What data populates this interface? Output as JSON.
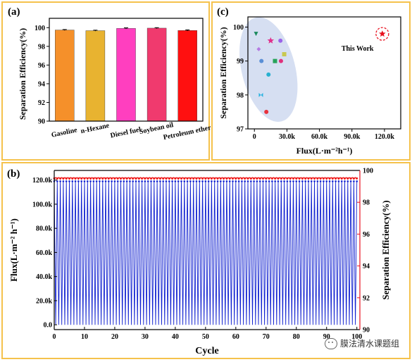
{
  "chart_data": [
    {
      "id": "a",
      "panel_label": "(a)",
      "type": "bar",
      "categories": [
        "Gasoline",
        "n-Hexane",
        "Diesel fuel",
        "Soybean oil",
        "Petroleum ether"
      ],
      "values": [
        99.75,
        99.68,
        99.92,
        99.95,
        99.7
      ],
      "errors": [
        0.05,
        0.05,
        0.06,
        0.05,
        0.06
      ],
      "colors": [
        "#f5902a",
        "#e8b330",
        "#ff3fbf",
        "#f03a6e",
        "#ff1010"
      ],
      "ylabel": "Separation Efficiency(%)",
      "ylim": [
        90,
        101
      ],
      "yticks": [
        90,
        92,
        94,
        96,
        98,
        100
      ],
      "ytick_labels": [
        "90",
        "92",
        "94",
        "96",
        "98",
        "100"
      ]
    },
    {
      "id": "c",
      "panel_label": "(c)",
      "type": "scatter",
      "xlabel": "Flux(L·m⁻²h⁻¹)",
      "ylabel": "Separation Efficiency(%)",
      "xlim": [
        -6000,
        135000
      ],
      "ylim": [
        97,
        100.3
      ],
      "xticks": [
        0,
        30000,
        60000,
        90000,
        120000
      ],
      "xtick_labels": [
        "0",
        "30.0k",
        "60.0k",
        "90.0k",
        "120.0k"
      ],
      "yticks": [
        97,
        98,
        99,
        100
      ],
      "ytick_labels": [
        "97",
        "98",
        "99",
        "100"
      ],
      "points": [
        {
          "x": 1500,
          "y": 99.8,
          "color": "#1a8a5c",
          "marker": "triangle"
        },
        {
          "x": 4000,
          "y": 99.35,
          "color": "#b57be3",
          "marker": "diamond"
        },
        {
          "x": 6500,
          "y": 99.0,
          "color": "#5a8fd6",
          "marker": "circle"
        },
        {
          "x": 6000,
          "y": 98.0,
          "color": "#2ab3e0",
          "marker": "bowtie"
        },
        {
          "x": 11000,
          "y": 97.5,
          "color": "#e8323c",
          "marker": "circle"
        },
        {
          "x": 13000,
          "y": 98.6,
          "color": "#28b0d0",
          "marker": "circle"
        },
        {
          "x": 15000,
          "y": 99.6,
          "color": "#e0308c",
          "marker": "star"
        },
        {
          "x": 19000,
          "y": 99.0,
          "color": "#28a35a",
          "marker": "square"
        },
        {
          "x": 24000,
          "y": 99.6,
          "color": "#9a63e8",
          "marker": "circle"
        },
        {
          "x": 24500,
          "y": 99.0,
          "color": "#e0307c",
          "marker": "circle"
        },
        {
          "x": 27500,
          "y": 99.2,
          "color": "#c8c850",
          "marker": "square"
        },
        {
          "x": 118000,
          "y": 99.8,
          "color": "#e8101e",
          "marker": "star"
        }
      ],
      "annotation": "This Work"
    },
    {
      "id": "b",
      "panel_label": "(b)",
      "type": "line",
      "xlabel": "Cycle",
      "ylabel": "Flux(L·m⁻² h⁻¹)",
      "y2label": "Separation Efficiency(%)",
      "xlim": [
        0,
        101
      ],
      "xticks": [
        0,
        10,
        20,
        30,
        40,
        50,
        60,
        70,
        80,
        90,
        100
      ],
      "xtick_labels": [
        "0",
        "10",
        "20",
        "30",
        "40",
        "50",
        "60",
        "70",
        "80",
        "90",
        "100"
      ],
      "ylim": [
        -4000,
        128000
      ],
      "yticks": [
        0,
        20000,
        40000,
        60000,
        80000,
        100000,
        120000
      ],
      "ytick_labels": [
        "0.0",
        "20.0k",
        "40.0k",
        "60.0k",
        "80.0k",
        "100.0k",
        "120.0k"
      ],
      "y2lim": [
        90,
        100
      ],
      "y2ticks": [
        90,
        92,
        94,
        96,
        98,
        100
      ],
      "y2tick_labels": [
        "90",
        "92",
        "94",
        "96",
        "98",
        "100"
      ],
      "series": [
        {
          "name": "Flux",
          "color": "#1020d0",
          "pattern": "sawtooth",
          "cycles": 100,
          "low": 0,
          "high": 119000
        },
        {
          "name": "Separation Efficiency",
          "color": "#ee1010",
          "pattern": "flat",
          "cycles": 100,
          "value": 99.5
        }
      ]
    }
  ],
  "watermark": "膜法清水课题组",
  "colors": {
    "frame": "#f5c24c",
    "red_axis": "#e8101e"
  }
}
